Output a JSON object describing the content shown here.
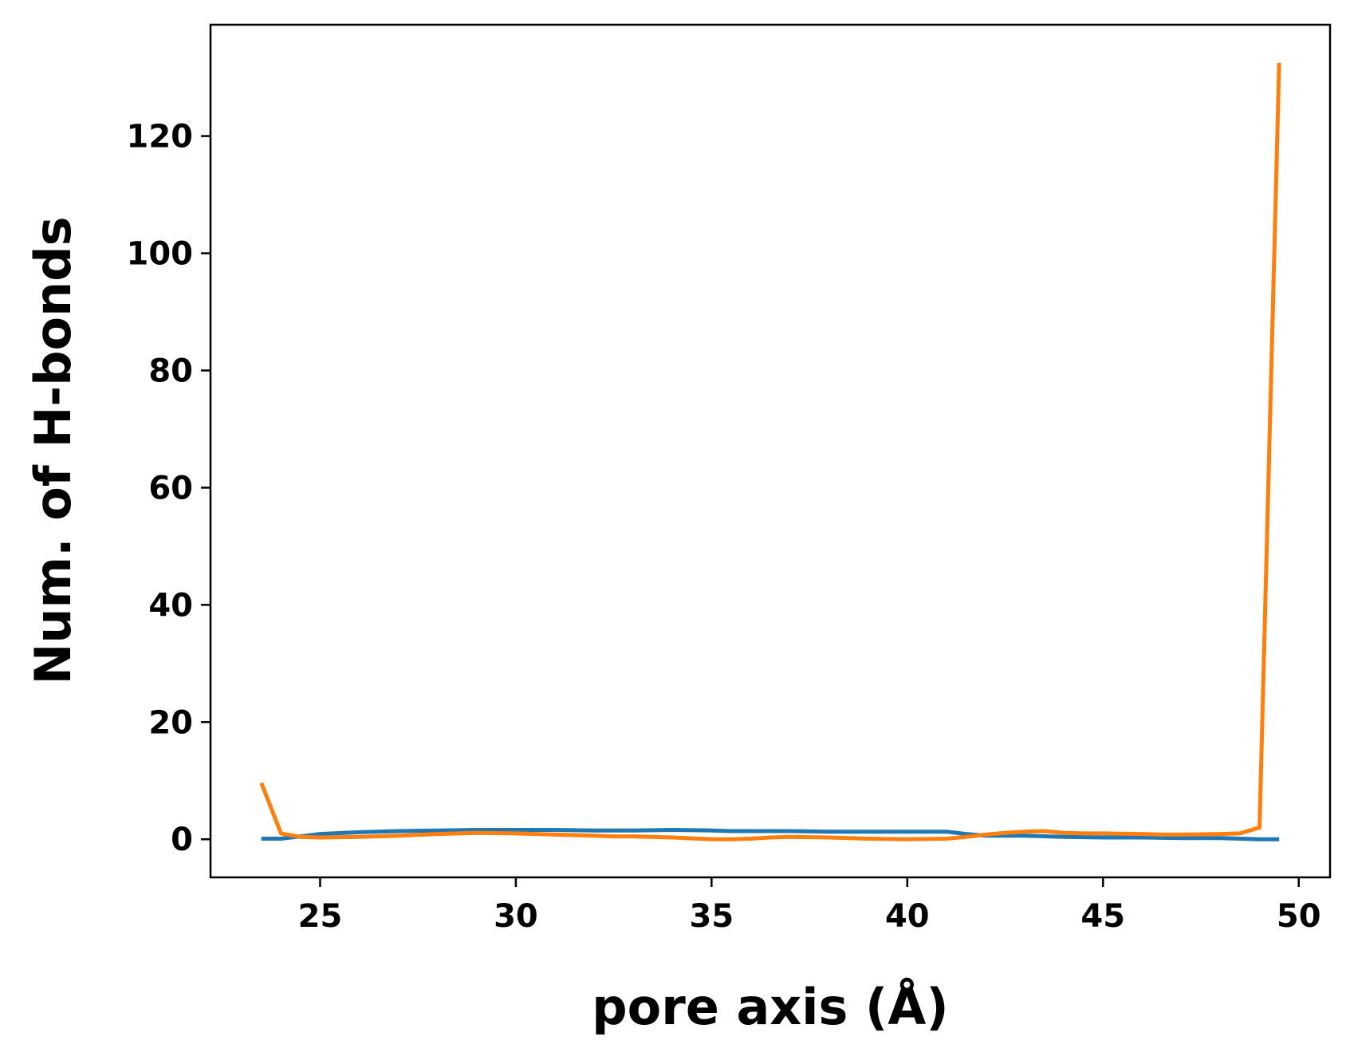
{
  "chart_data": {
    "type": "line",
    "title": "",
    "xlabel": "pore axis (Å)",
    "ylabel": "Num. of H-bonds",
    "xlim": [
      22.2,
      50.8
    ],
    "ylim": [
      -6.5,
      139
    ],
    "xticks": [
      25,
      30,
      35,
      40,
      45,
      50
    ],
    "yticks": [
      0,
      20,
      40,
      60,
      80,
      100,
      120
    ],
    "grid": false,
    "legend": "none",
    "series": [
      {
        "color": "#1f77b4",
        "x": [
          23.5,
          24,
          24.5,
          25,
          26,
          27,
          28,
          29,
          30,
          31,
          32,
          33,
          34,
          35,
          35.5,
          36,
          37,
          38,
          39,
          40,
          41,
          41.5,
          42,
          43,
          44,
          45,
          46,
          47,
          48,
          49,
          49.5
        ],
        "y": [
          0.1,
          0.1,
          0.5,
          0.9,
          1.2,
          1.4,
          1.5,
          1.6,
          1.6,
          1.6,
          1.5,
          1.5,
          1.6,
          1.5,
          1.4,
          1.4,
          1.4,
          1.3,
          1.3,
          1.3,
          1.3,
          0.9,
          0.6,
          0.6,
          0.4,
          0.3,
          0.3,
          0.2,
          0.2,
          0.0,
          0.0
        ]
      },
      {
        "color": "#ff7f0e",
        "x": [
          23.5,
          24,
          24.5,
          25,
          26,
          27,
          28,
          29,
          30,
          31,
          32,
          32.5,
          33,
          34,
          35,
          35.5,
          36,
          36.5,
          37,
          38,
          39,
          40,
          41,
          41.5,
          42,
          42.5,
          43,
          43.5,
          44,
          44.5,
          45,
          46,
          46.5,
          47,
          48,
          48.5,
          49,
          49.5
        ],
        "y": [
          9.6,
          1.0,
          0.4,
          0.3,
          0.4,
          0.6,
          0.9,
          1.1,
          1.0,
          0.8,
          0.6,
          0.5,
          0.5,
          0.3,
          0.0,
          0.0,
          0.1,
          0.3,
          0.4,
          0.3,
          0.1,
          0.0,
          0.1,
          0.4,
          0.8,
          1.1,
          1.3,
          1.4,
          1.1,
          1.0,
          1.0,
          0.9,
          0.8,
          0.8,
          0.9,
          1.0,
          2.0,
          132.5
        ]
      }
    ]
  }
}
